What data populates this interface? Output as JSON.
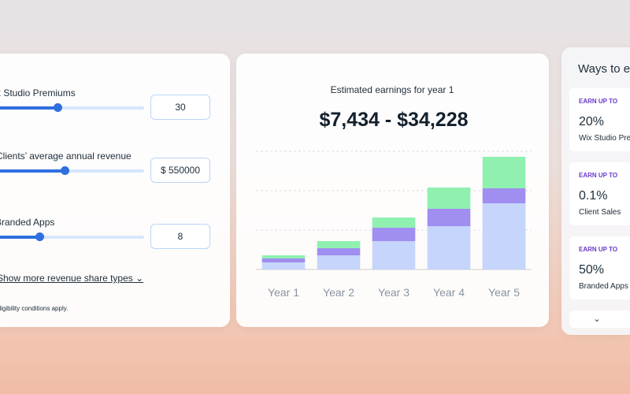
{
  "left_panel": {
    "sliders": [
      {
        "label": "Wix Studio Premiums",
        "value": "30"
      },
      {
        "label": "Clients’ average annual revenue",
        "value": "$ 550000"
      },
      {
        "label": "Branded Apps",
        "value": "8"
      }
    ],
    "link": "Show more revenue share types",
    "note": "Eligibility conditions apply."
  },
  "chart_data": {
    "type": "stacked_bar",
    "title": "Estimated earnings for year 1",
    "subtitle": "$7,434 - $34,228",
    "categories": [
      "Year 1",
      "Year 2",
      "Year 3",
      "Year 4",
      "Year 5"
    ],
    "series": [
      {
        "color": "#c5d5fb",
        "values": [
          9,
          18,
          36,
          55,
          84
        ]
      },
      {
        "color": "#a08ef0",
        "values": [
          5,
          9,
          17,
          22,
          19
        ]
      },
      {
        "color": "#8ff0b0",
        "values": [
          4,
          9,
          13,
          27,
          40
        ]
      }
    ],
    "ylim": [
      0,
      150
    ],
    "yticks": [
      50,
      100,
      150
    ],
    "grid": true
  },
  "right_panel": {
    "title": "Ways to earn",
    "cards": [
      {
        "kicker": "EARN UP TO",
        "value": "20%",
        "label": "Wix Studio Premiums"
      },
      {
        "kicker": "EARN UP TO",
        "value": "0.1%",
        "label": "Client Sales"
      },
      {
        "kicker": "EARN UP TO",
        "value": "50%",
        "label": "Branded Apps"
      }
    ]
  }
}
